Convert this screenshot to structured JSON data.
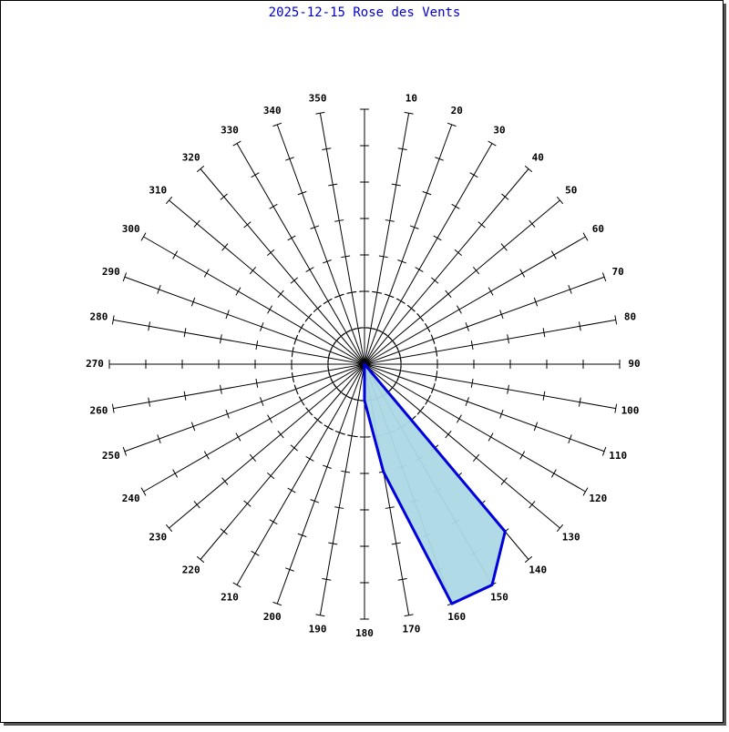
{
  "chart_data": {
    "type": "wind-rose",
    "title": "2025-12-15 Rose des Vents",
    "categories": [
      null,
      10,
      20,
      30,
      40,
      50,
      60,
      70,
      80,
      90,
      100,
      110,
      120,
      130,
      140,
      150,
      160,
      170,
      180,
      190,
      200,
      210,
      220,
      230,
      240,
      250,
      260,
      270,
      280,
      290,
      300,
      310,
      320,
      330,
      340,
      350
    ],
    "values": [
      0,
      0,
      0,
      0,
      0,
      0,
      0,
      0,
      0,
      0,
      0,
      0,
      0,
      0,
      6,
      7,
      7,
      3,
      1,
      0,
      0,
      0,
      0,
      0,
      0,
      0,
      0,
      0,
      0,
      0,
      0,
      0,
      0,
      0,
      0,
      0
    ],
    "color": "#0000dd",
    "fill": "#add8e6",
    "rlim": [
      0,
      7
    ],
    "rticks": [
      1,
      2,
      3,
      4,
      5,
      6,
      7
    ],
    "circles": [
      1,
      2
    ]
  }
}
